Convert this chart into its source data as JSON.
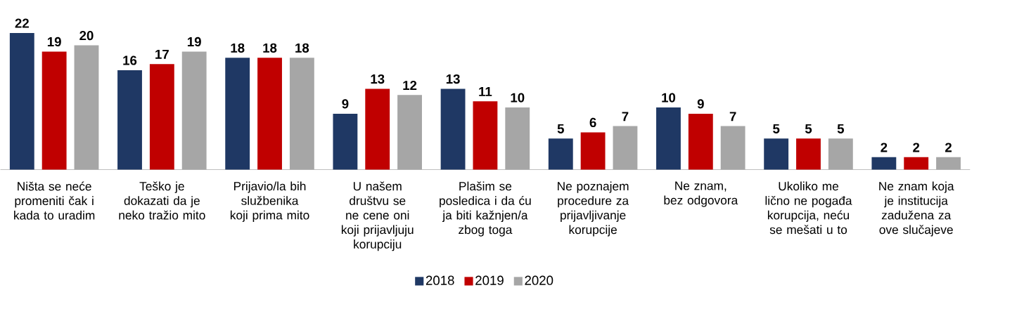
{
  "chart_data": {
    "type": "bar",
    "categories": [
      "Ništa se neće promeniti čak i kada to uradim",
      "Teško je dokazati da je neko tražio mito",
      "Prijavio/la bih službenika koji prima mito",
      "U našem društvu se ne cene oni koji prijavljuju korupciju",
      "Plašim se posledica i da ću ja biti kažnjen/a zbog toga",
      "Ne poznajem procedure za prijavljivanje korupcije",
      "Ne znam, bez odgovora",
      "Ukoliko me lično ne pogađa korupcija, neću se mešati u to",
      "Ne znam koja je institucija zadužena za ove slučajeve"
    ],
    "series": [
      {
        "name": "2018",
        "color": "#1f3864",
        "values": [
          22,
          16,
          18,
          9,
          13,
          5,
          10,
          5,
          2
        ]
      },
      {
        "name": "2019",
        "color": "#c00000",
        "values": [
          19,
          17,
          18,
          13,
          11,
          6,
          9,
          5,
          2
        ]
      },
      {
        "name": "2020",
        "color": "#a6a6a6",
        "values": [
          20,
          19,
          18,
          12,
          10,
          7,
          7,
          5,
          2
        ]
      }
    ],
    "data_labels": true,
    "legend": "bottom"
  }
}
